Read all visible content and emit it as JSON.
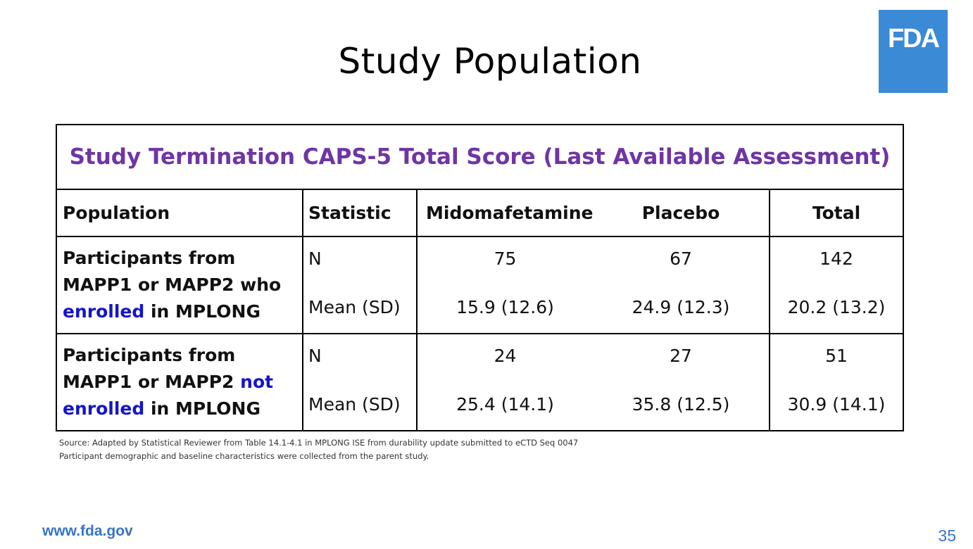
{
  "slide": {
    "title": "Study Population",
    "logo_text": "FDA",
    "footer_url": "www.fda.gov",
    "page_number": "35",
    "colors": {
      "logo_bg": "#3a8ad6",
      "table_title": "#6f35a5",
      "highlight": "#1515c8",
      "footer": "#3a74c4"
    }
  },
  "table": {
    "title": "Study Termination CAPS-5 Total Score (Last Available Assessment)",
    "headers": {
      "population": "Population",
      "statistic": "Statistic",
      "midomafetamine": "Midomafetamine",
      "placebo": "Placebo",
      "total": "Total"
    },
    "rows": [
      {
        "population_prefix": "Participants from MAPP1 or MAPP2 who ",
        "population_highlight": "enrolled",
        "population_suffix": " in MPLONG",
        "stat_1": "N",
        "stat_2": "Mean (SD)",
        "midomafetamine_1": "75",
        "midomafetamine_2": "15.9 (12.6)",
        "placebo_1": "67",
        "placebo_2": "24.9 (12.3)",
        "total_1": "142",
        "total_2": "20.2 (13.2)"
      },
      {
        "population_prefix": "Participants from MAPP1 or MAPP2 ",
        "population_highlight": "not enrolled",
        "population_suffix": " in MPLONG",
        "stat_1": "N",
        "stat_2": "Mean (SD)",
        "midomafetamine_1": "24",
        "midomafetamine_2": "25.4 (14.1)",
        "placebo_1": "27",
        "placebo_2": "35.8 (12.5)",
        "total_1": "51",
        "total_2": "30.9 (14.1)"
      }
    ]
  },
  "notes": {
    "source": "Source: Adapted by Statistical Reviewer from Table 14.1-4.1 in MPLONG ISE from durability update submitted to eCTD Seq 0047",
    "demographics": "Participant demographic and baseline characteristics were collected from the parent study."
  }
}
